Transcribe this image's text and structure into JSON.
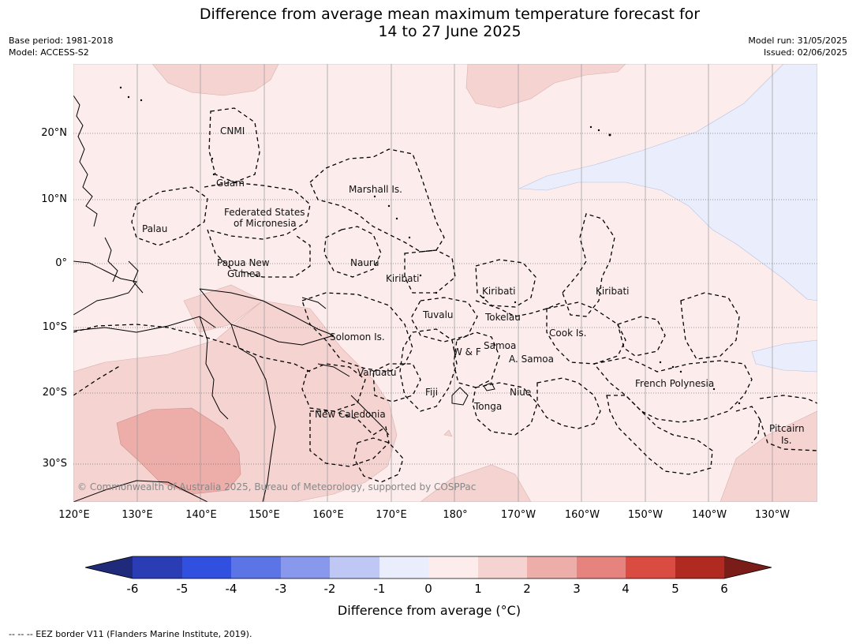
{
  "title": {
    "line1": "Difference from average mean maximum temperature forecast for",
    "line2": "14 to 27 June 2025"
  },
  "meta_left": {
    "base_period": "Base period: 1981-2018",
    "model": "Model: ACCESS-S2"
  },
  "meta_right": {
    "model_run": "Model run: 31/05/2025",
    "issued": "Issued: 02/06/2025"
  },
  "map": {
    "lat_labels": [
      "20°N",
      "10°N",
      "0°",
      "10°S",
      "20°S",
      "30°S"
    ],
    "lon_labels": [
      "120°E",
      "130°E",
      "140°E",
      "150°E",
      "160°E",
      "170°E",
      "180°",
      "170°W",
      "160°W",
      "150°W",
      "140°W",
      "130°W"
    ],
    "regions": [
      {
        "name": "CNMI"
      },
      {
        "name": "Guam"
      },
      {
        "name": "Marshall Is."
      },
      {
        "name": "Federated States"
      },
      {
        "name": "of Micronesia"
      },
      {
        "name": "Palau"
      },
      {
        "name": "Papua New"
      },
      {
        "name": "Guinea"
      },
      {
        "name": "Nauru"
      },
      {
        "name": "Kiribati"
      },
      {
        "name": "Kiribati"
      },
      {
        "name": "Kiribati"
      },
      {
        "name": "Tuvalu"
      },
      {
        "name": "Tokelau"
      },
      {
        "name": "Cook Is."
      },
      {
        "name": "Solomon Is."
      },
      {
        "name": "Samoa"
      },
      {
        "name": "W & F"
      },
      {
        "name": "A. Samoa"
      },
      {
        "name": "Vanuatu"
      },
      {
        "name": "Fiji"
      },
      {
        "name": "Niue"
      },
      {
        "name": "Tonga"
      },
      {
        "name": "French Polynesia"
      },
      {
        "name": "New Caledonia"
      },
      {
        "name": "Pitcairn"
      },
      {
        "name": "Is."
      }
    ],
    "copyright": "© Commonwealth of Australia 2025, Bureau of Meteorology, supported by COSPPac"
  },
  "colorbar": {
    "title": "Difference from average (°C)",
    "ticks": [
      "-6",
      "-5",
      "-4",
      "-3",
      "-2",
      "-1",
      "0",
      "1",
      "2",
      "3",
      "4",
      "5",
      "6"
    ],
    "colors": {
      "below_min": "#1f2a7a",
      "bins": [
        "#2a3db5",
        "#3250e0",
        "#5b74e6",
        "#8898ec",
        "#bfc8f4",
        "#e9edfc",
        "#fcecec",
        "#f5d3d1",
        "#edaeaa",
        "#e6837e",
        "#da4b41",
        "#b02a22"
      ],
      "above_max": "#7a1c18"
    }
  },
  "footnote": "-- -- -- EEZ border V11 (Flanders Marine Institute, 2019)."
}
